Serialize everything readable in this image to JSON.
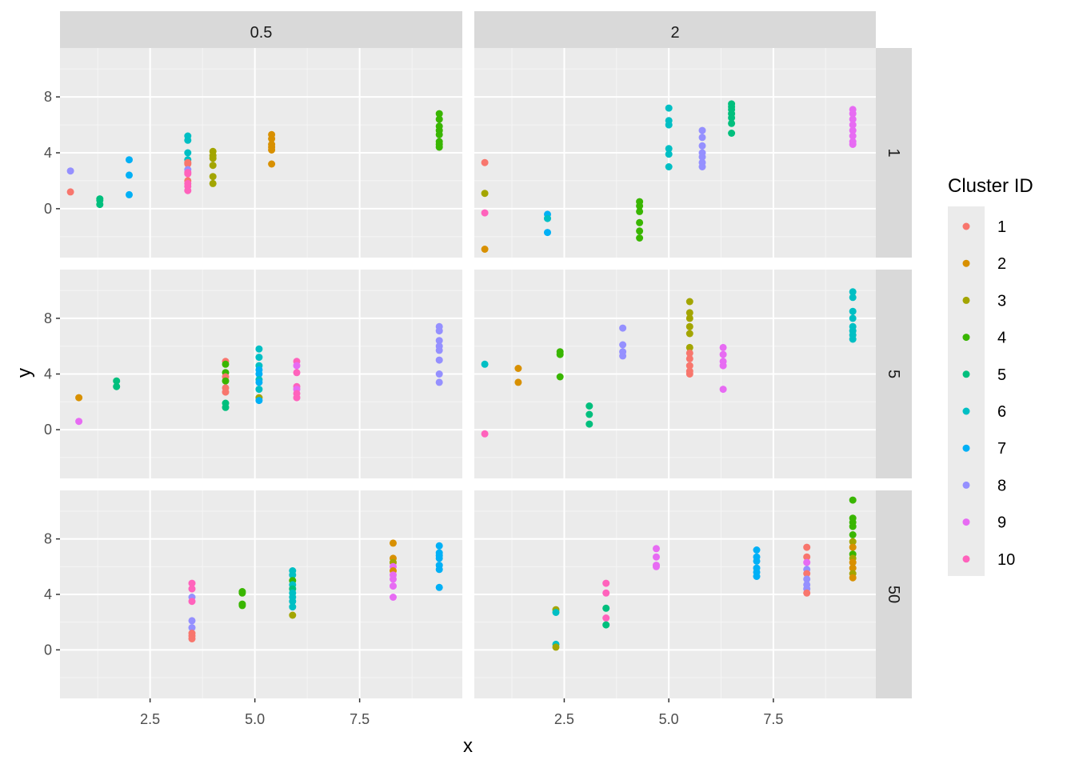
{
  "chart_data": {
    "type": "scatter",
    "facet_cols_label": [
      "0.5",
      "2"
    ],
    "facet_rows_label": [
      "1",
      "5",
      "50"
    ],
    "xlabel": "x",
    "ylabel": "y",
    "xlim": [
      0.35,
      9.95
    ],
    "ylim": [
      -3.5,
      11.5
    ],
    "x_ticks": [
      2.5,
      5.0,
      7.5
    ],
    "x_tick_labels": [
      "2.5",
      "5.0",
      "7.5"
    ],
    "y_ticks": [
      0,
      4,
      8
    ],
    "y_tick_labels": [
      "0",
      "4",
      "8"
    ],
    "grid": true,
    "legend": {
      "title": "Cluster ID",
      "position": "right",
      "labels": [
        "1",
        "2",
        "3",
        "4",
        "5",
        "6",
        "7",
        "8",
        "9",
        "10"
      ],
      "colors": [
        "#F8766D",
        "#D89000",
        "#A3A500",
        "#39B600",
        "#00BF7D",
        "#00BFC4",
        "#00B0F6",
        "#9590FF",
        "#E76BF3",
        "#FF62BC"
      ]
    },
    "panels": [
      {
        "col": "0.5",
        "row": "1",
        "points": [
          [
            0.6,
            2.7,
            8
          ],
          [
            0.6,
            1.2,
            1
          ],
          [
            1.3,
            0.7,
            5
          ],
          [
            1.3,
            0.6,
            5
          ],
          [
            1.3,
            0.3,
            5
          ],
          [
            2.0,
            3.5,
            7
          ],
          [
            2.0,
            2.4,
            7
          ],
          [
            2.0,
            1.0,
            7
          ],
          [
            3.4,
            5.2,
            6
          ],
          [
            3.4,
            4.9,
            6
          ],
          [
            3.4,
            4.0,
            6
          ],
          [
            3.4,
            3.5,
            6
          ],
          [
            3.4,
            3.3,
            1
          ],
          [
            3.4,
            3.2,
            1
          ],
          [
            3.4,
            2.8,
            8
          ],
          [
            3.4,
            2.6,
            10
          ],
          [
            3.4,
            2.5,
            10
          ],
          [
            3.4,
            2.0,
            1
          ],
          [
            3.4,
            1.8,
            10
          ],
          [
            3.4,
            1.6,
            10
          ],
          [
            3.4,
            1.3,
            10
          ],
          [
            4.0,
            4.1,
            3
          ],
          [
            4.0,
            3.8,
            3
          ],
          [
            4.0,
            3.6,
            3
          ],
          [
            4.0,
            3.1,
            3
          ],
          [
            4.0,
            2.3,
            3
          ],
          [
            4.0,
            1.8,
            3
          ],
          [
            5.4,
            5.3,
            2
          ],
          [
            5.4,
            5.0,
            2
          ],
          [
            5.4,
            4.6,
            2
          ],
          [
            5.4,
            4.4,
            2
          ],
          [
            5.4,
            4.2,
            2
          ],
          [
            5.4,
            3.2,
            2
          ],
          [
            9.4,
            6.8,
            4
          ],
          [
            9.4,
            6.4,
            4
          ],
          [
            9.4,
            5.9,
            4
          ],
          [
            9.4,
            5.6,
            4
          ],
          [
            9.4,
            5.3,
            4
          ],
          [
            9.4,
            4.8,
            4
          ],
          [
            9.4,
            4.6,
            4
          ],
          [
            9.4,
            4.4,
            4
          ]
        ]
      },
      {
        "col": "2",
        "row": "1",
        "points": [
          [
            0.6,
            3.3,
            1
          ],
          [
            0.6,
            1.1,
            3
          ],
          [
            0.6,
            -0.3,
            10
          ],
          [
            0.6,
            -2.9,
            2
          ],
          [
            2.1,
            -0.4,
            7
          ],
          [
            2.1,
            -0.7,
            6
          ],
          [
            2.1,
            -1.7,
            7
          ],
          [
            4.3,
            0.5,
            4
          ],
          [
            4.3,
            0.2,
            4
          ],
          [
            4.3,
            -0.2,
            4
          ],
          [
            4.3,
            -1.0,
            4
          ],
          [
            4.3,
            -1.6,
            4
          ],
          [
            4.3,
            -2.1,
            4
          ],
          [
            5.0,
            7.2,
            6
          ],
          [
            5.0,
            6.3,
            6
          ],
          [
            5.0,
            6.0,
            6
          ],
          [
            5.0,
            4.3,
            6
          ],
          [
            5.0,
            3.9,
            6
          ],
          [
            5.0,
            3.0,
            6
          ],
          [
            5.8,
            5.6,
            8
          ],
          [
            5.8,
            5.1,
            8
          ],
          [
            5.8,
            4.5,
            8
          ],
          [
            5.8,
            4.0,
            8
          ],
          [
            5.8,
            3.7,
            8
          ],
          [
            5.8,
            3.3,
            8
          ],
          [
            5.8,
            3.0,
            8
          ],
          [
            6.5,
            7.5,
            5
          ],
          [
            6.5,
            7.3,
            5
          ],
          [
            6.5,
            7.1,
            5
          ],
          [
            6.5,
            6.8,
            5
          ],
          [
            6.5,
            6.5,
            5
          ],
          [
            6.5,
            6.1,
            5
          ],
          [
            6.5,
            5.4,
            5
          ],
          [
            9.4,
            7.1,
            9
          ],
          [
            9.4,
            6.8,
            9
          ],
          [
            9.4,
            6.4,
            9
          ],
          [
            9.4,
            6.0,
            9
          ],
          [
            9.4,
            5.6,
            9
          ],
          [
            9.4,
            5.2,
            9
          ],
          [
            9.4,
            4.8,
            9
          ],
          [
            9.4,
            4.6,
            9
          ]
        ]
      },
      {
        "col": "0.5",
        "row": "5",
        "points": [
          [
            0.8,
            2.3,
            2
          ],
          [
            0.8,
            0.6,
            9
          ],
          [
            1.7,
            3.5,
            5
          ],
          [
            1.7,
            3.1,
            5
          ],
          [
            4.3,
            4.9,
            1
          ],
          [
            4.3,
            4.7,
            4
          ],
          [
            4.3,
            4.1,
            4
          ],
          [
            4.3,
            3.8,
            1
          ],
          [
            4.3,
            3.5,
            4
          ],
          [
            4.3,
            3.0,
            1
          ],
          [
            4.3,
            2.7,
            1
          ],
          [
            4.3,
            1.9,
            5
          ],
          [
            4.3,
            1.6,
            5
          ],
          [
            5.1,
            5.8,
            6
          ],
          [
            5.1,
            5.2,
            6
          ],
          [
            5.1,
            4.6,
            6
          ],
          [
            5.1,
            4.3,
            7
          ],
          [
            5.1,
            4.0,
            7
          ],
          [
            5.1,
            3.6,
            6
          ],
          [
            5.1,
            3.4,
            7
          ],
          [
            5.1,
            2.9,
            6
          ],
          [
            5.1,
            2.3,
            3
          ],
          [
            5.1,
            2.1,
            7
          ],
          [
            6.0,
            4.9,
            10
          ],
          [
            6.0,
            4.6,
            9
          ],
          [
            6.0,
            4.1,
            10
          ],
          [
            6.0,
            3.1,
            10
          ],
          [
            6.0,
            2.9,
            9
          ],
          [
            6.0,
            2.6,
            10
          ],
          [
            6.0,
            2.3,
            10
          ],
          [
            9.4,
            7.4,
            8
          ],
          [
            9.4,
            7.1,
            8
          ],
          [
            9.4,
            6.4,
            8
          ],
          [
            9.4,
            6.0,
            8
          ],
          [
            9.4,
            5.7,
            8
          ],
          [
            9.4,
            5.0,
            8
          ],
          [
            9.4,
            4.0,
            8
          ],
          [
            9.4,
            3.4,
            8
          ]
        ]
      },
      {
        "col": "2",
        "row": "5",
        "points": [
          [
            0.6,
            4.7,
            6
          ],
          [
            0.6,
            -0.3,
            10
          ],
          [
            1.4,
            4.4,
            2
          ],
          [
            1.4,
            3.4,
            2
          ],
          [
            2.4,
            5.6,
            4
          ],
          [
            2.4,
            5.4,
            4
          ],
          [
            2.4,
            3.8,
            4
          ],
          [
            3.1,
            1.7,
            5
          ],
          [
            3.1,
            1.1,
            5
          ],
          [
            3.1,
            0.4,
            5
          ],
          [
            3.9,
            7.3,
            8
          ],
          [
            3.9,
            6.1,
            8
          ],
          [
            3.9,
            5.6,
            8
          ],
          [
            3.9,
            5.3,
            8
          ],
          [
            5.5,
            9.2,
            3
          ],
          [
            5.5,
            8.4,
            3
          ],
          [
            5.5,
            8.0,
            3
          ],
          [
            5.5,
            7.4,
            3
          ],
          [
            5.5,
            6.9,
            3
          ],
          [
            5.5,
            5.9,
            3
          ],
          [
            5.5,
            5.5,
            1
          ],
          [
            5.5,
            5.1,
            1
          ],
          [
            5.5,
            4.6,
            1
          ],
          [
            5.5,
            4.2,
            1
          ],
          [
            5.5,
            4.0,
            1
          ],
          [
            6.3,
            5.9,
            9
          ],
          [
            6.3,
            5.4,
            9
          ],
          [
            6.3,
            4.9,
            9
          ],
          [
            6.3,
            4.6,
            9
          ],
          [
            6.3,
            2.9,
            9
          ],
          [
            9.4,
            9.9,
            6
          ],
          [
            9.4,
            9.5,
            6
          ],
          [
            9.4,
            8.5,
            6
          ],
          [
            9.4,
            8.0,
            6
          ],
          [
            9.4,
            7.4,
            6
          ],
          [
            9.4,
            7.1,
            6
          ],
          [
            9.4,
            6.8,
            6
          ],
          [
            9.4,
            6.5,
            6
          ]
        ]
      },
      {
        "col": "0.5",
        "row": "50",
        "points": [
          [
            3.5,
            4.8,
            10
          ],
          [
            3.5,
            4.4,
            10
          ],
          [
            3.5,
            3.8,
            8
          ],
          [
            3.5,
            3.5,
            10
          ],
          [
            3.5,
            2.1,
            8
          ],
          [
            3.5,
            1.6,
            8
          ],
          [
            3.5,
            1.2,
            1
          ],
          [
            3.5,
            1.0,
            1
          ],
          [
            3.5,
            0.8,
            1
          ],
          [
            4.7,
            4.2,
            4
          ],
          [
            4.7,
            4.1,
            4
          ],
          [
            4.7,
            3.3,
            4
          ],
          [
            4.7,
            3.2,
            4
          ],
          [
            5.9,
            5.7,
            6
          ],
          [
            5.9,
            5.4,
            6
          ],
          [
            5.9,
            5.0,
            4
          ],
          [
            5.9,
            4.7,
            6
          ],
          [
            5.9,
            4.4,
            5
          ],
          [
            5.9,
            4.1,
            6
          ],
          [
            5.9,
            3.8,
            6
          ],
          [
            5.9,
            3.5,
            6
          ],
          [
            5.9,
            3.1,
            6
          ],
          [
            5.9,
            2.5,
            3
          ],
          [
            8.3,
            7.7,
            2
          ],
          [
            8.3,
            6.6,
            2
          ],
          [
            8.3,
            6.3,
            3
          ],
          [
            8.3,
            6.0,
            9
          ],
          [
            8.3,
            5.7,
            2
          ],
          [
            8.3,
            5.4,
            9
          ],
          [
            8.3,
            5.1,
            9
          ],
          [
            8.3,
            4.6,
            9
          ],
          [
            8.3,
            3.8,
            9
          ],
          [
            9.4,
            7.5,
            7
          ],
          [
            9.4,
            7.0,
            7
          ],
          [
            9.4,
            6.8,
            7
          ],
          [
            9.4,
            6.6,
            7
          ],
          [
            9.4,
            6.1,
            7
          ],
          [
            9.4,
            5.8,
            7
          ],
          [
            9.4,
            4.5,
            7
          ]
        ]
      },
      {
        "col": "2",
        "row": "50",
        "points": [
          [
            2.3,
            2.9,
            3
          ],
          [
            2.3,
            2.7,
            6
          ],
          [
            2.3,
            0.4,
            6
          ],
          [
            2.3,
            0.2,
            3
          ],
          [
            3.5,
            4.8,
            10
          ],
          [
            3.5,
            4.1,
            10
          ],
          [
            3.5,
            3.0,
            5
          ],
          [
            3.5,
            2.3,
            10
          ],
          [
            3.5,
            1.8,
            5
          ],
          [
            4.7,
            7.3,
            9
          ],
          [
            4.7,
            6.7,
            9
          ],
          [
            4.7,
            6.1,
            9
          ],
          [
            4.7,
            6.0,
            9
          ],
          [
            7.1,
            7.2,
            7
          ],
          [
            7.1,
            6.7,
            7
          ],
          [
            7.1,
            6.4,
            7
          ],
          [
            7.1,
            5.9,
            7
          ],
          [
            7.1,
            5.6,
            7
          ],
          [
            7.1,
            5.3,
            7
          ],
          [
            8.3,
            7.4,
            1
          ],
          [
            8.3,
            6.7,
            1
          ],
          [
            8.3,
            6.3,
            9
          ],
          [
            8.3,
            5.8,
            8
          ],
          [
            8.3,
            5.5,
            1
          ],
          [
            8.3,
            5.1,
            8
          ],
          [
            8.3,
            4.7,
            8
          ],
          [
            8.3,
            4.4,
            8
          ],
          [
            8.3,
            4.1,
            1
          ],
          [
            9.4,
            10.8,
            4
          ],
          [
            9.4,
            9.5,
            4
          ],
          [
            9.4,
            9.2,
            4
          ],
          [
            9.4,
            8.9,
            4
          ],
          [
            9.4,
            8.3,
            4
          ],
          [
            9.4,
            7.8,
            3
          ],
          [
            9.4,
            7.4,
            2
          ],
          [
            9.4,
            6.9,
            4
          ],
          [
            9.4,
            6.6,
            3
          ],
          [
            9.4,
            6.3,
            2
          ],
          [
            9.4,
            5.9,
            2
          ],
          [
            9.4,
            5.5,
            3
          ],
          [
            9.4,
            5.2,
            2
          ]
        ]
      }
    ]
  }
}
